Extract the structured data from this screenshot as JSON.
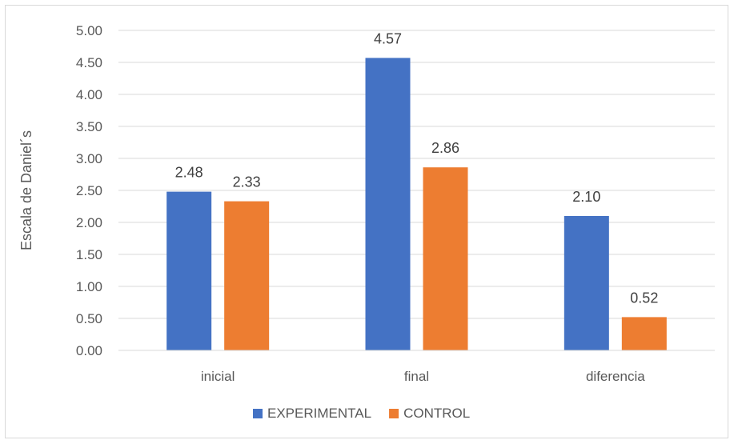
{
  "chart_data": {
    "type": "bar",
    "categories": [
      "inicial",
      "final",
      "diferencia"
    ],
    "series": [
      {
        "name": "EXPERIMENTAL",
        "color": "#4472C4",
        "values": [
          2.48,
          4.57,
          2.1
        ]
      },
      {
        "name": "CONTROL",
        "color": "#ED7D31",
        "values": [
          2.33,
          2.86,
          0.52
        ]
      }
    ],
    "ylabel": "Escala de Daniel´s",
    "ylim": [
      0,
      5
    ],
    "yticks": [
      "0.00",
      "0.50",
      "1.00",
      "1.50",
      "2.00",
      "2.50",
      "3.00",
      "3.50",
      "4.00",
      "4.50",
      "5.00"
    ],
    "grid": true,
    "legend_position": "bottom"
  }
}
